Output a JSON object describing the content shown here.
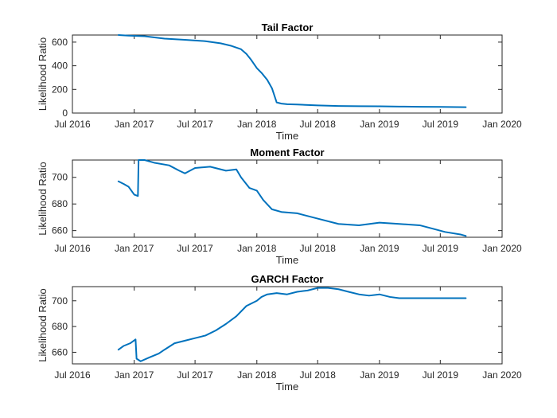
{
  "chart_data": [
    {
      "type": "line",
      "title": "Tail Factor",
      "xlabel": "Time",
      "ylabel": "Likelihood Ratio",
      "xlim": [
        "2016-07-01",
        "2020-01-01"
      ],
      "ylim": [
        0,
        660
      ],
      "x_ticks": [
        "2016-07-01",
        "2017-01-01",
        "2017-07-01",
        "2018-01-01",
        "2018-07-01",
        "2019-01-01",
        "2019-07-01",
        "2020-01-01"
      ],
      "x_tick_labels": [
        "Jul 2016",
        "Jan 2017",
        "Jul 2017",
        "Jan 2018",
        "Jul 2018",
        "Jan 2019",
        "Jul 2019",
        "Jan 2020"
      ],
      "y_ticks": [
        0,
        200,
        400,
        600
      ],
      "y_tick_labels": [
        "0",
        "200",
        "400",
        "600"
      ],
      "grid": false,
      "color": "#0072BD",
      "series": [
        {
          "x": [
            "2016-11-15",
            "2016-12-15",
            "2017-02-01",
            "2017-04-01",
            "2017-06-01",
            "2017-08-01",
            "2017-09-15",
            "2017-10-15",
            "2017-11-15",
            "2017-12-01",
            "2017-12-15",
            "2018-01-01",
            "2018-01-15",
            "2018-02-01",
            "2018-02-15",
            "2018-03-01",
            "2018-03-15",
            "2018-04-01",
            "2018-05-01",
            "2018-07-01",
            "2018-09-01",
            "2018-11-01",
            "2019-01-01",
            "2019-03-01",
            "2019-05-01",
            "2019-07-01",
            "2019-09-15"
          ],
          "values": [
            660,
            655,
            650,
            630,
            620,
            608,
            590,
            570,
            540,
            500,
            450,
            380,
            340,
            280,
            210,
            90,
            80,
            75,
            72,
            65,
            60,
            58,
            57,
            55,
            53,
            52,
            50
          ]
        }
      ]
    },
    {
      "type": "line",
      "title": "Moment Factor",
      "xlabel": "Time",
      "ylabel": "Likelihood Ratio",
      "xlim": [
        "2016-07-01",
        "2020-01-01"
      ],
      "ylim": [
        655,
        713
      ],
      "x_ticks": [
        "2016-07-01",
        "2017-01-01",
        "2017-07-01",
        "2018-01-01",
        "2018-07-01",
        "2019-01-01",
        "2019-07-01",
        "2020-01-01"
      ],
      "x_tick_labels": [
        "Jul 2016",
        "Jan 2017",
        "Jul 2017",
        "Jan 2018",
        "Jul 2018",
        "Jan 2019",
        "Jul 2019",
        "Jan 2020"
      ],
      "y_ticks": [
        660,
        680,
        700
      ],
      "y_tick_labels": [
        "660",
        "680",
        "700"
      ],
      "grid": false,
      "color": "#0072BD",
      "series": [
        {
          "x": [
            "2016-11-15",
            "2016-12-01",
            "2016-12-15",
            "2017-01-01",
            "2017-01-12",
            "2017-01-14",
            "2017-02-01",
            "2017-03-01",
            "2017-04-15",
            "2017-05-15",
            "2017-06-01",
            "2017-07-01",
            "2017-08-15",
            "2017-10-01",
            "2017-11-01",
            "2017-11-15",
            "2017-12-10",
            "2018-01-01",
            "2018-01-20",
            "2018-02-15",
            "2018-03-15",
            "2018-05-01",
            "2018-07-01",
            "2018-09-01",
            "2018-11-01",
            "2019-01-01",
            "2019-03-01",
            "2019-05-01",
            "2019-06-15",
            "2019-07-15",
            "2019-09-01",
            "2019-09-15"
          ],
          "values": [
            697,
            695,
            693,
            687,
            686,
            713,
            713,
            711,
            709,
            705,
            703,
            707,
            708,
            705,
            706,
            700,
            692,
            690,
            683,
            676,
            674,
            673,
            669,
            665,
            664,
            666,
            665,
            664,
            661,
            659,
            657,
            656
          ]
        }
      ]
    },
    {
      "type": "line",
      "title": "GARCH Factor",
      "xlabel": "Time",
      "ylabel": "Likelihood Ratio",
      "xlim": [
        "2016-07-01",
        "2020-01-01"
      ],
      "ylim": [
        651,
        711
      ],
      "x_ticks": [
        "2016-07-01",
        "2017-01-01",
        "2017-07-01",
        "2018-01-01",
        "2018-07-01",
        "2019-01-01",
        "2019-07-01",
        "2020-01-01"
      ],
      "x_tick_labels": [
        "Jul 2016",
        "Jan 2017",
        "Jul 2017",
        "Jan 2018",
        "Jul 2018",
        "Jan 2019",
        "Jul 2019",
        "Jan 2020"
      ],
      "y_ticks": [
        660,
        680,
        700
      ],
      "y_tick_labels": [
        "660",
        "680",
        "700"
      ],
      "grid": false,
      "color": "#0072BD",
      "series": [
        {
          "x": [
            "2016-11-15",
            "2016-12-01",
            "2016-12-20",
            "2017-01-05",
            "2017-01-08",
            "2017-01-20",
            "2017-02-15",
            "2017-03-15",
            "2017-04-01",
            "2017-05-01",
            "2017-06-01",
            "2017-07-01",
            "2017-08-01",
            "2017-09-01",
            "2017-10-01",
            "2017-11-01",
            "2017-12-01",
            "2018-01-01",
            "2018-01-15",
            "2018-02-01",
            "2018-03-01",
            "2018-04-01",
            "2018-05-01",
            "2018-06-01",
            "2018-07-01",
            "2018-08-01",
            "2018-09-01",
            "2018-10-01",
            "2018-11-01",
            "2018-12-01",
            "2019-01-01",
            "2019-02-01",
            "2019-03-01",
            "2019-05-01",
            "2019-07-01",
            "2019-09-15"
          ],
          "values": [
            662,
            665,
            667,
            670,
            655,
            653,
            656,
            659,
            662,
            667,
            669,
            671,
            673,
            677,
            682,
            688,
            696,
            700,
            703,
            705,
            706,
            705,
            707,
            708,
            710,
            710,
            709,
            707,
            705,
            704,
            705,
            703,
            702,
            702,
            702,
            702
          ]
        }
      ]
    }
  ]
}
